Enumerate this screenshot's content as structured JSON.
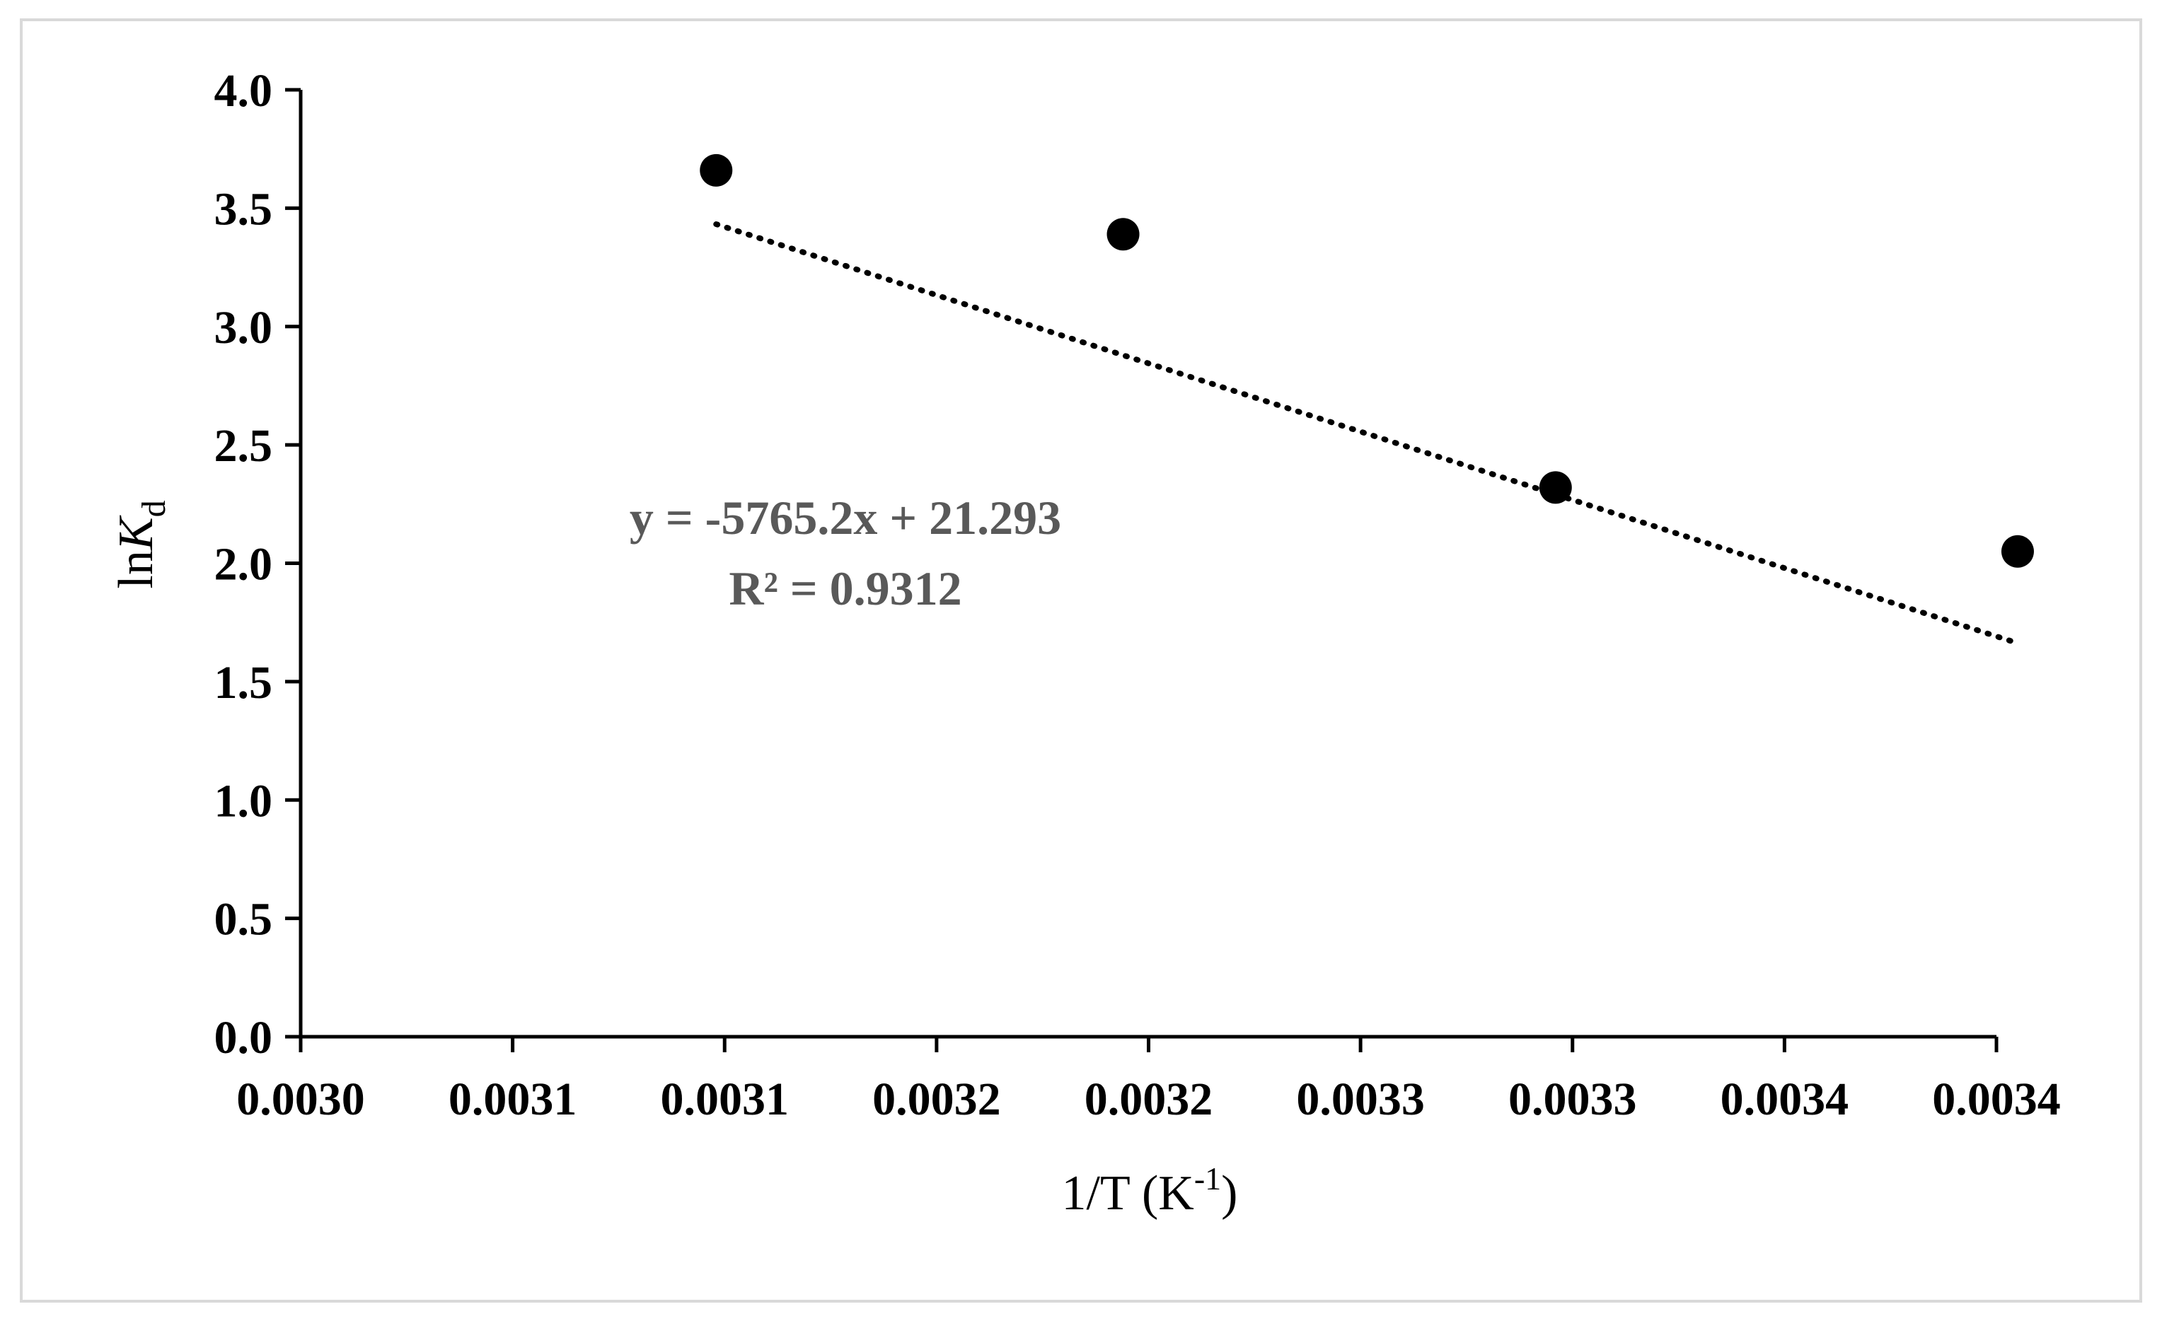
{
  "chart_data": {
    "type": "scatter",
    "x_ticks": [
      "0.0030",
      "0.0031",
      "0.0031",
      "0.0032",
      "0.0032",
      "0.0033",
      "0.0033",
      "0.0034",
      "0.0034"
    ],
    "y_ticks": [
      "0.0",
      "0.5",
      "1.0",
      "1.5",
      "2.0",
      "2.5",
      "3.0",
      "3.5",
      "4.0"
    ],
    "xlim": [
      0.003,
      0.0034
    ],
    "ylim": [
      0.0,
      4.0
    ],
    "xlabel": {
      "main": "1/T (K",
      "sup": "-1",
      "close": ")"
    },
    "ylabel": {
      "main": "ln",
      "italic": "K",
      "sub": "d"
    },
    "series": [
      {
        "x": [
          0.003098,
          0.003194,
          0.003296,
          0.003405
        ],
        "y": [
          3.66,
          3.39,
          2.32,
          2.05
        ]
      }
    ],
    "trendline": {
      "slope": -5765.2,
      "intercept": 21.293,
      "x_range": [
        0.003098,
        0.003405
      ],
      "style": "dotted"
    },
    "annotations": {
      "equation": "y = -5765.2x + 21.293",
      "r_squared": "R² = 0.9312"
    },
    "grid": false,
    "legend": "none",
    "colors": {
      "points": "#000000",
      "equation": "#595959",
      "frame": "#d9d9d9"
    }
  }
}
